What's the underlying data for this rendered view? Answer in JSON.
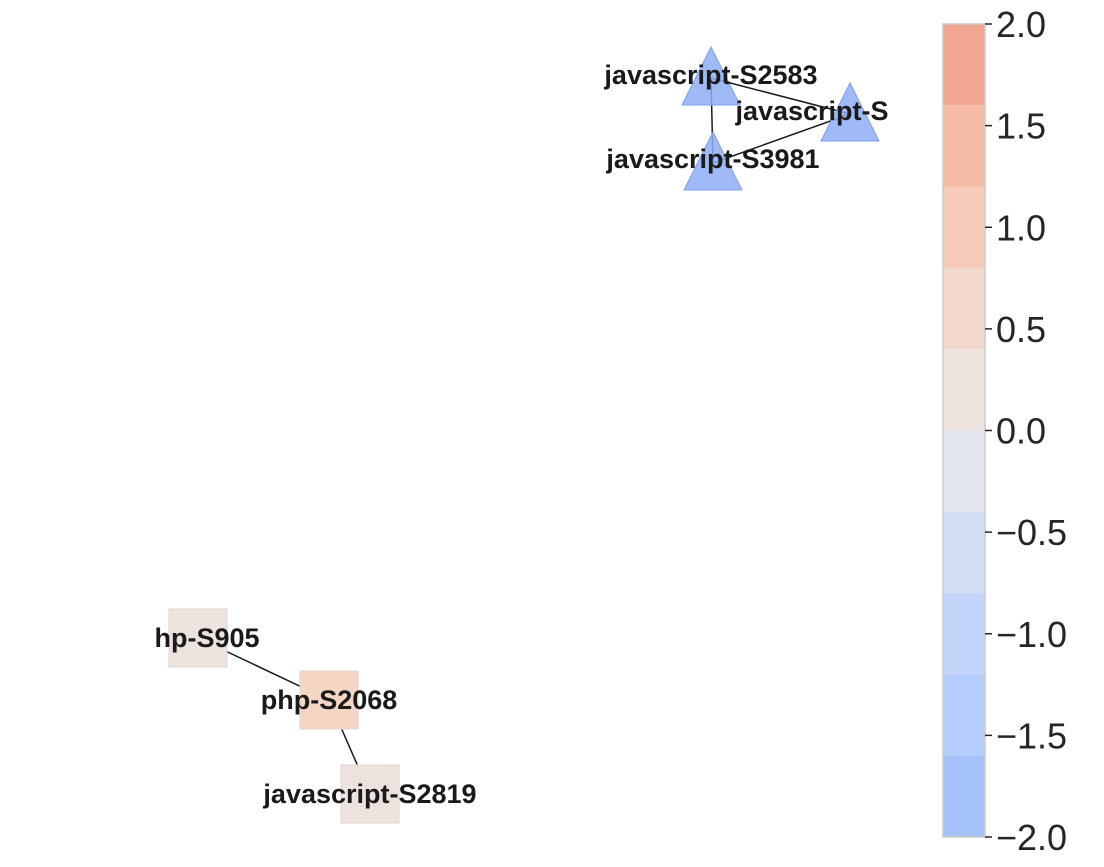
{
  "graph": {
    "nodes": [
      {
        "id": "js2583",
        "label": "javascript-S2583",
        "shape": "triangle",
        "value": -2.0
      },
      {
        "id": "js_s",
        "label": "javascript-S",
        "shape": "triangle",
        "value": -2.0
      },
      {
        "id": "js3981",
        "label": "javascript-S3981",
        "shape": "triangle",
        "value": -2.0
      },
      {
        "id": "php905",
        "label": "hp-S905",
        "shape": "square",
        "value": 0.15
      },
      {
        "id": "php2068",
        "label": "php-S2068",
        "shape": "square",
        "value": 0.7
      },
      {
        "id": "js2819",
        "label": "javascript-S2819",
        "shape": "square",
        "value": 0.15
      }
    ],
    "edges": [
      {
        "source": "js2583",
        "target": "js_s"
      },
      {
        "source": "js2583",
        "target": "js3981"
      },
      {
        "source": "js3981",
        "target": "js_s"
      },
      {
        "source": "php905",
        "target": "php2068"
      },
      {
        "source": "php2068",
        "target": "js2819"
      }
    ]
  },
  "colorbar": {
    "min": -2.0,
    "max": 2.0,
    "ticks": [
      "2.0",
      "1.5",
      "1.0",
      "0.5",
      "0.0",
      "−0.5",
      "−1.0",
      "−1.5",
      "−2.0"
    ],
    "tick_values": [
      2.0,
      1.5,
      1.0,
      0.5,
      0.0,
      -0.5,
      -1.0,
      -1.5,
      -2.0
    ],
    "bands": [
      {
        "from": 1.6,
        "to": 2.0,
        "color": "#f2a793"
      },
      {
        "from": 1.2,
        "to": 1.6,
        "color": "#f6bba4"
      },
      {
        "from": 0.8,
        "to": 1.2,
        "color": "#f6cab8"
      },
      {
        "from": 0.4,
        "to": 0.8,
        "color": "#f3d9cd"
      },
      {
        "from": 0.0,
        "to": 0.4,
        "color": "#ece3df"
      },
      {
        "from": -0.4,
        "to": 0.0,
        "color": "#e1e5ee"
      },
      {
        "from": -0.8,
        "to": -0.4,
        "color": "#d3def4"
      },
      {
        "from": -1.2,
        "to": -0.8,
        "color": "#c4d5fb"
      },
      {
        "from": -1.6,
        "to": -1.2,
        "color": "#b5cdfd"
      },
      {
        "from": -2.0,
        "to": -1.6,
        "color": "#a6c2fb"
      }
    ]
  },
  "colors": {
    "triangle_fill": "#8eaef5",
    "triangle_stroke": "#7e9ff0",
    "square_low": "#ece3df",
    "square_mid": "#f5d5c4",
    "edge": "#1a1a1a"
  }
}
